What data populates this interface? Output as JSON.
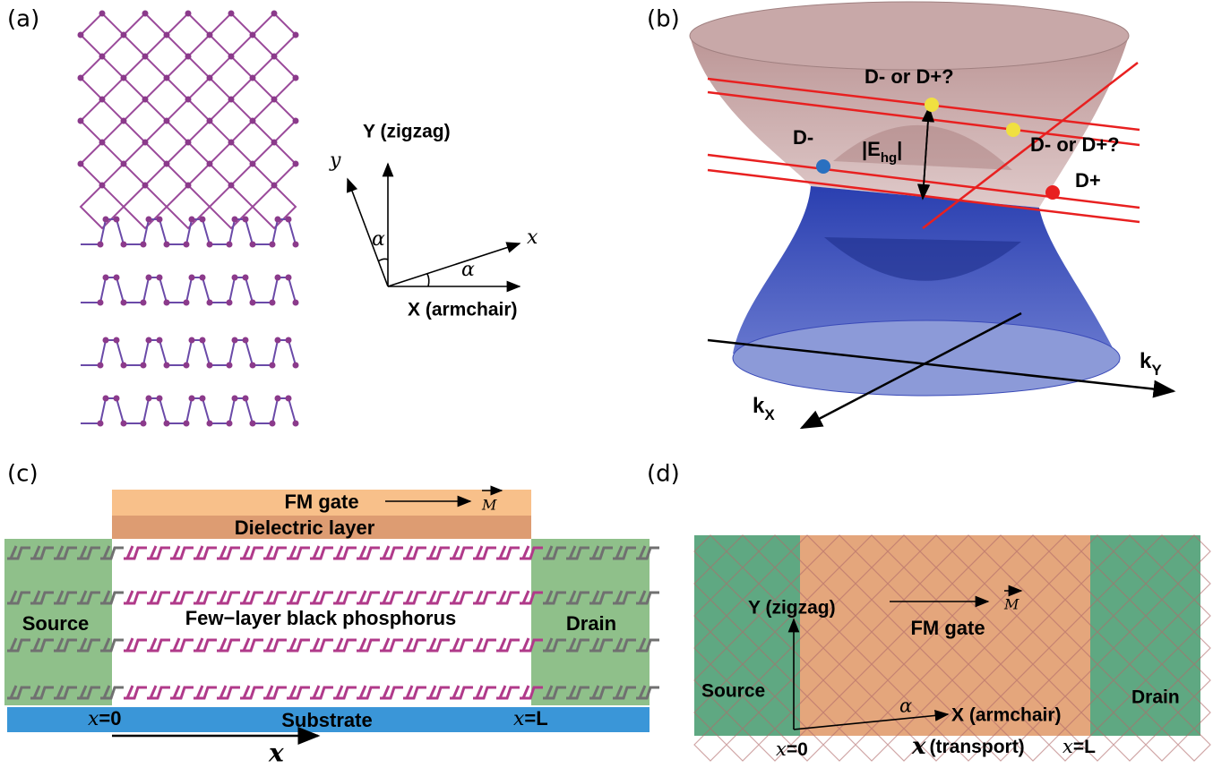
{
  "panels": [
    {
      "label": "(a)",
      "y_axis": "Y (zigzag)",
      "y_rot": "y",
      "x_rot": "x",
      "alpha_1": "α",
      "alpha_2": "α",
      "x_axis": "X (armchair)"
    },
    {
      "label": "(b)",
      "question_1": "D- or D+?",
      "question_2": "D- or D+?",
      "d_minus": "D-",
      "d_plus": "D+",
      "gap": {
        "open": "|E",
        "sub": "hg",
        "close": "|"
      },
      "k_y": {
        "base": "k",
        "sub": "Y"
      },
      "k_x": {
        "base": "k",
        "sub": "X"
      }
    },
    {
      "label": "(c)",
      "gate": "FM gate",
      "magnet": "M",
      "dielectric": "Dielectric layer",
      "source": "Source",
      "channel": "Few−layer black phosphorus",
      "drain": "Drain",
      "x0_var": "x",
      "x0_val": "=0",
      "substrate": "Substrate",
      "xl_var": "x",
      "xl_val": "=L",
      "x_axis": "x"
    },
    {
      "label": "(d)",
      "y_axis": "Y (zigzag)",
      "gate": "FM gate",
      "magnet": "M",
      "source": "Source",
      "drain": "Drain",
      "alpha": "α",
      "x_axis": "X (armchair)",
      "x0_var": "x",
      "x0_val": "=0",
      "transport_var": "x",
      "transport": "(transport)",
      "xl_var": "x",
      "xl_val": "=L"
    }
  ]
}
